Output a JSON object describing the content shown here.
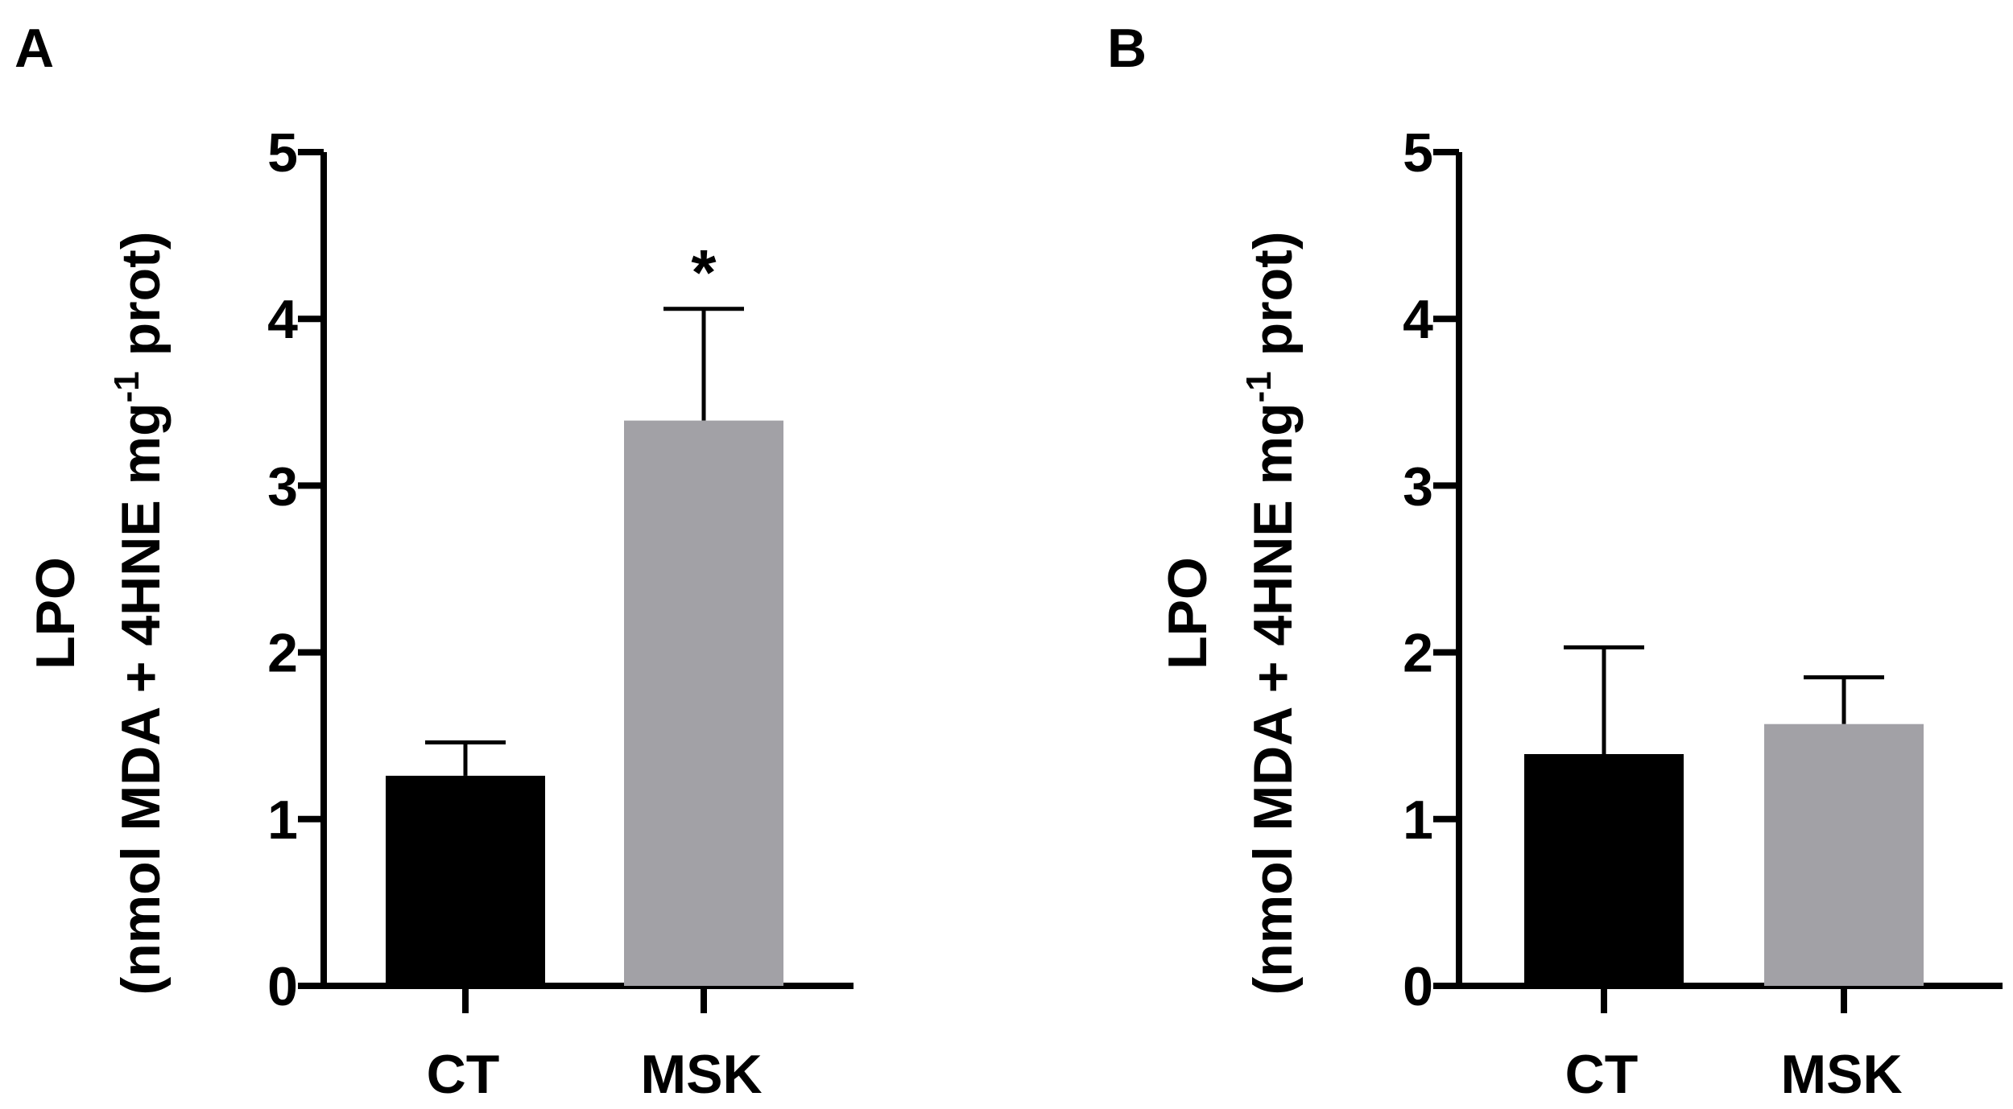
{
  "figure": {
    "panels": [
      {
        "panel_label": "A",
        "ylabel_line1": "LPO",
        "ylabel_line2_main": "(nmol MDA + 4HNE mg",
        "ylabel_line2_sup": "-1",
        "ylabel_line2_end": " prot)"
      },
      {
        "panel_label": "B",
        "ylabel_line1": "LPO",
        "ylabel_line2_main": "(nmol MDA + 4HNE mg",
        "ylabel_line2_sup": "-1",
        "ylabel_line2_end": " prot)"
      }
    ]
  },
  "chart_data": [
    {
      "type": "bar",
      "panel": "A",
      "categories": [
        "CT",
        "MSK"
      ],
      "values": [
        1.26,
        3.39
      ],
      "error": [
        0.2,
        0.67
      ],
      "bar_colors": [
        "#000000",
        "#a2a1a6"
      ],
      "annotations": [
        "",
        "*"
      ],
      "ylim": [
        0,
        5
      ],
      "yticks": [
        0,
        1,
        2,
        3,
        4,
        5
      ],
      "ylabel": "LPO (nmol MDA + 4HNE mg-1 prot)",
      "xlabel": "",
      "grid": false
    },
    {
      "type": "bar",
      "panel": "B",
      "categories": [
        "CT",
        "MSK"
      ],
      "values": [
        1.39,
        1.57
      ],
      "error": [
        0.64,
        0.28
      ],
      "bar_colors": [
        "#000000",
        "#a2a1a6"
      ],
      "annotations": [
        "",
        ""
      ],
      "ylim": [
        0,
        5
      ],
      "yticks": [
        0,
        1,
        2,
        3,
        4,
        5
      ],
      "ylabel": "LPO (nmol MDA + 4HNE mg-1 prot)",
      "xlabel": "",
      "grid": false
    }
  ]
}
